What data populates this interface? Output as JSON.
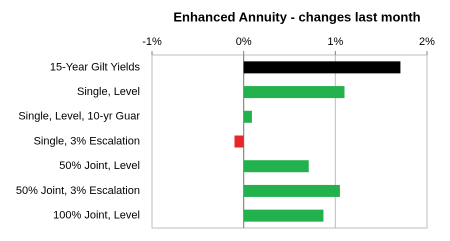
{
  "chart_data": {
    "type": "barh",
    "title": "Enhanced Annuity - changes last month",
    "categories": [
      "15-Year Gilt Yields",
      "Single, Level",
      "Single, Level, 10-yr Guar",
      "Single, 3% Escalation",
      "50% Joint, Level",
      "50% Joint, 3% Escalation",
      "100% Joint, Level"
    ],
    "values": [
      1.71,
      1.1,
      0.09,
      -0.1,
      0.71,
      1.05,
      0.87
    ],
    "colors": [
      "#000000",
      "#22b14c",
      "#22b14c",
      "#e8262a",
      "#22b14c",
      "#22b14c",
      "#22b14c"
    ],
    "xlim": [
      -1,
      2
    ],
    "xticks": [
      {
        "value": -1,
        "label": "-1%"
      },
      {
        "value": 0,
        "label": "0%"
      },
      {
        "value": 1,
        "label": "1%"
      },
      {
        "value": 2,
        "label": "2%"
      }
    ],
    "grid": true
  }
}
